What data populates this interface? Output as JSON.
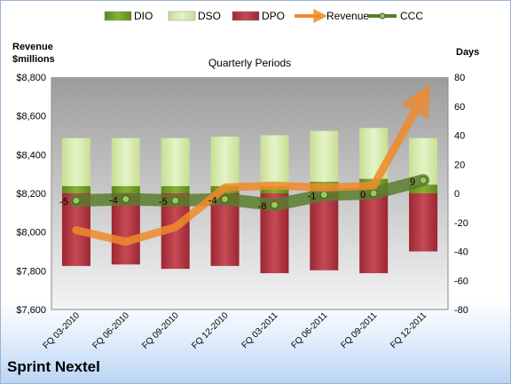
{
  "chart_data": {
    "type": "bar",
    "subtitle": "Quarterly Periods",
    "company": "Sprint Nextel",
    "ylabel_left": [
      "Revenue",
      "$millions"
    ],
    "ylabel_right": "Days",
    "categories": [
      "FQ 03-2010",
      "FQ 06-2010",
      "FQ 09-2010",
      "FQ 12-2010",
      "FQ 03-2011",
      "FQ 06-2011",
      "FQ 09-2011",
      "FQ 12-2011"
    ],
    "left_ticks": [
      "$7,600",
      "$7,800",
      "$8,000",
      "$8,200",
      "$8,400",
      "$8,600",
      "$8,800"
    ],
    "left_ylim": [
      7600,
      8800
    ],
    "right_ticks": [
      "-80",
      "-60",
      "-40",
      "-20",
      "0",
      "20",
      "40",
      "60",
      "80"
    ],
    "right_ylim": [
      -80,
      80
    ],
    "legend": [
      "DIO",
      "DSO",
      "DPO",
      "Revenue",
      "CCC"
    ],
    "series": [
      {
        "name": "DIO",
        "axis": "right",
        "type": "bar-stacked",
        "values": [
          5,
          5,
          5,
          5,
          5,
          8,
          10,
          6
        ]
      },
      {
        "name": "DSO",
        "axis": "right",
        "type": "bar-stacked",
        "values": [
          33,
          33,
          33,
          34,
          35,
          35,
          35,
          32
        ]
      },
      {
        "name": "DPO",
        "axis": "right",
        "type": "bar-negative",
        "values": [
          -50,
          -49,
          -52,
          -50,
          -55,
          -53,
          -55,
          -40
        ]
      },
      {
        "name": "Revenue",
        "axis": "left",
        "type": "line",
        "values": [
          8010,
          7950,
          8025,
          8230,
          8240,
          8230,
          8240,
          8700
        ]
      },
      {
        "name": "CCC",
        "axis": "right",
        "type": "line",
        "values": [
          -5,
          -4,
          -5,
          -4,
          -8,
          -1,
          0,
          9
        ]
      }
    ],
    "ccc_labels": [
      "-5",
      "-4",
      "-5",
      "-4",
      "-8",
      "-1",
      "0",
      "9"
    ],
    "colors": {
      "DIO": "#6f9a1f",
      "DSO": "#d8ebb0",
      "DPO": "#b8343f",
      "Revenue": "#f08a2c",
      "CCC": "#5a7c2d",
      "plot_bg_top": "#9c9c9c",
      "plot_bg_bottom": "#f4f4f4"
    },
    "grid": false,
    "legend_position": "top"
  }
}
